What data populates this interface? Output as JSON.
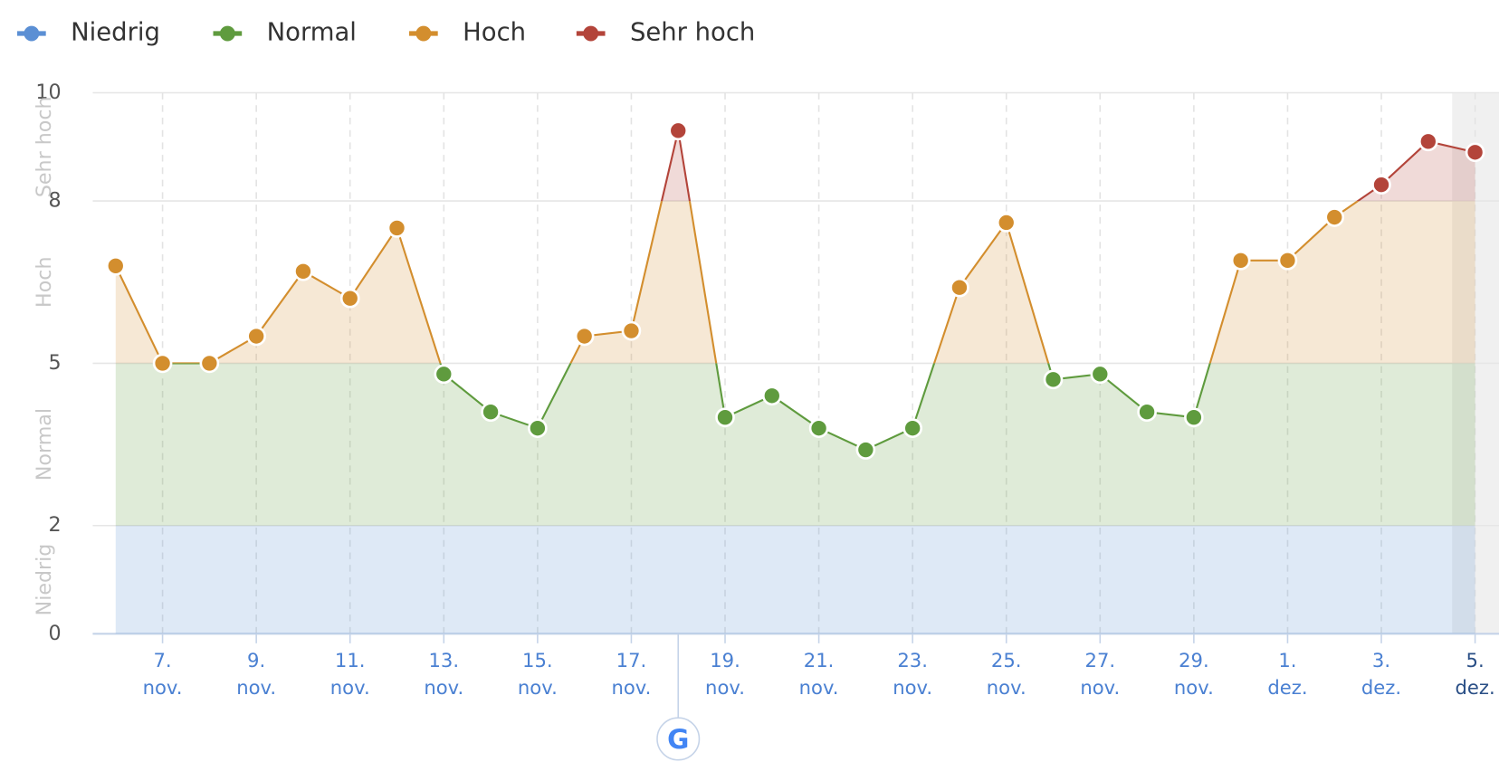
{
  "chart_data": {
    "type": "line",
    "legend": "top-left",
    "bands": [
      {
        "name": "Niedrig",
        "from": 0,
        "to": 2,
        "color": "#5b8fd4"
      },
      {
        "name": "Normal",
        "from": 2,
        "to": 5,
        "color": "#5f9b3e"
      },
      {
        "name": "Hoch",
        "from": 5,
        "to": 8,
        "color": "#d38e2e"
      },
      {
        "name": "Sehr hoch",
        "from": 8,
        "to": 10,
        "color": "#b3443a"
      }
    ],
    "categories": [
      null,
      "7. nov.",
      null,
      "9. nov.",
      null,
      "11. nov.",
      null,
      "13. nov.",
      null,
      "15. nov.",
      null,
      "17. nov.",
      null,
      "19. nov.",
      null,
      "21. nov.",
      null,
      "23. nov.",
      null,
      "25. nov.",
      null,
      "27. nov.",
      null,
      "29. nov.",
      null,
      "1. dez.",
      null,
      "3. dez.",
      null,
      "5. dez."
    ],
    "values": [
      6.8,
      5.0,
      5.0,
      5.5,
      6.7,
      6.2,
      7.5,
      4.8,
      4.1,
      3.8,
      5.5,
      5.6,
      9.3,
      4.0,
      4.4,
      3.8,
      3.4,
      3.8,
      6.4,
      7.6,
      4.7,
      4.8,
      4.1,
      4.0,
      6.9,
      6.9,
      7.7,
      8.3,
      9.1,
      8.9
    ],
    "ylim": [
      0,
      10
    ],
    "yticks": [
      0,
      2,
      5,
      8,
      10
    ],
    "grid": true
  }
}
